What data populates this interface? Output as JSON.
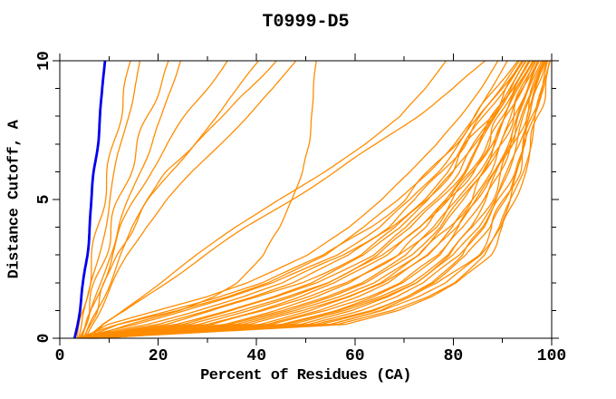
{
  "chart_data": {
    "type": "line",
    "title": "T0999-D5",
    "xlabel": "Percent of Residues (CA)",
    "ylabel": "Distance Cutoff, A",
    "xlim": [
      0,
      100
    ],
    "ylim": [
      0,
      10
    ],
    "grid": "off",
    "legend": "none",
    "x_major_ticks": [
      0,
      20,
      40,
      60,
      80,
      100
    ],
    "x_minor_ticks": [
      10,
      30,
      50,
      70,
      90
    ],
    "y_major_ticks": [
      0,
      5,
      10
    ],
    "y_minor_ticks": [
      1,
      2,
      3,
      4,
      6,
      7,
      8,
      9
    ],
    "x_tick_labels": [
      "0",
      "20",
      "40",
      "60",
      "80",
      "100"
    ],
    "y_tick_labels": [
      "0",
      "5",
      "10"
    ],
    "colors": {
      "highlight_curve": "#0000ee",
      "model_curves": "#ff8c00",
      "axis": "#000000",
      "background": "#ffffff"
    },
    "y_grid": [
      0,
      0.5,
      1,
      1.5,
      2,
      3,
      4,
      5,
      6,
      7,
      8,
      9,
      10
    ],
    "series": [
      {
        "name": "highlighted-model-blue",
        "color": "highlight_curve",
        "width": 2.8,
        "x_at_y": [
          3.0,
          3.6,
          4.1,
          4.5,
          4.9,
          5.5,
          6.0,
          6.5,
          7.0,
          7.6,
          8.2,
          8.7,
          9.2
        ]
      },
      {
        "name": "model-steep-1",
        "color": "model_curves",
        "width": 1.3,
        "x_at_y": [
          3.5,
          4.2,
          4.8,
          5.3,
          5.8,
          6.8,
          7.8,
          8.8,
          9.9,
          11.0,
          12.1,
          13.2,
          14.4
        ]
      },
      {
        "name": "model-steep-2",
        "color": "model_curves",
        "width": 1.3,
        "x_at_y": [
          3.8,
          4.6,
          5.3,
          6.0,
          6.6,
          7.8,
          9.0,
          10.2,
          11.4,
          12.6,
          13.8,
          15.0,
          16.3
        ]
      },
      {
        "name": "model-steep-3",
        "color": "model_curves",
        "width": 1.3,
        "x_at_y": [
          4.0,
          5.0,
          5.9,
          6.7,
          7.5,
          9.0,
          10.5,
          12.2,
          14.0,
          16.0,
          18.0,
          20.0,
          22.2
        ]
      },
      {
        "name": "model-steep-4",
        "color": "model_curves",
        "width": 1.3,
        "x_at_y": [
          4.2,
          5.4,
          6.5,
          7.5,
          8.4,
          10.2,
          12.0,
          14.0,
          16.3,
          18.6,
          20.8,
          22.7,
          24.5
        ]
      },
      {
        "name": "model-mid-1",
        "color": "model_curves",
        "width": 1.3,
        "x_at_y": [
          4.5,
          5.6,
          6.6,
          7.6,
          8.6,
          10.5,
          12.7,
          15.2,
          18.2,
          21.8,
          25.8,
          30.0,
          34.0
        ]
      },
      {
        "name": "model-mid-2",
        "color": "model_curves",
        "width": 1.3,
        "x_at_y": [
          5.0,
          6.2,
          7.4,
          8.6,
          9.8,
          12.2,
          15.0,
          18.4,
          22.4,
          27.0,
          31.8,
          36.3,
          40.5
        ]
      },
      {
        "name": "model-mid-3",
        "color": "model_curves",
        "width": 1.3,
        "x_at_y": [
          4.8,
          6.0,
          7.2,
          8.3,
          9.4,
          11.8,
          14.6,
          18.0,
          22.0,
          27.0,
          33.0,
          39.0,
          44.0
        ]
      },
      {
        "name": "model-mid-4",
        "color": "model_curves",
        "width": 1.3,
        "x_at_y": [
          5.2,
          6.6,
          8.0,
          9.4,
          10.8,
          13.8,
          17.4,
          21.8,
          27.0,
          32.6,
          38.2,
          43.4,
          48.0
        ]
      },
      {
        "name": "model-knee-52",
        "color": "model_curves",
        "width": 1.3,
        "x_at_y": [
          5.5,
          14.0,
          24.0,
          31.0,
          36.0,
          41.5,
          45.0,
          47.5,
          49.2,
          50.3,
          51.0,
          51.6,
          52.2
        ]
      },
      {
        "name": "model-diagonal-1",
        "color": "model_curves",
        "width": 1.3,
        "x_at_y": [
          5.5,
          8.5,
          12.5,
          16.5,
          20.5,
          28.0,
          36.0,
          44.5,
          53.5,
          62.0,
          69.5,
          74.5,
          78.5
        ]
      },
      {
        "name": "model-diagonal-2",
        "color": "model_curves",
        "width": 1.3,
        "x_at_y": [
          6.0,
          9.0,
          13.5,
          17.5,
          21.5,
          29.5,
          38.0,
          47.0,
          56.0,
          64.5,
          72.5,
          80.0,
          86.5
        ]
      },
      {
        "name": "model-near-bundle-1",
        "color": "model_curves",
        "width": 1.3,
        "x_at_y": [
          4.5,
          10.0,
          20.0,
          30.0,
          38.0,
          50.0,
          58.5,
          65.5,
          71.5,
          77.0,
          81.5,
          85.5,
          89.0
        ]
      },
      {
        "name": "model-near-bundle-2",
        "color": "model_curves",
        "width": 1.3,
        "x_at_y": [
          5.0,
          12.0,
          24.0,
          34.0,
          42.0,
          54.0,
          62.0,
          69.0,
          75.0,
          80.0,
          84.5,
          88.0,
          91.0
        ]
      }
    ],
    "bundle": {
      "name": "model-bundle",
      "color": "model_curves",
      "width": 1.3,
      "count": 30,
      "spread_exponent": 0.8,
      "x_at_y_left_envelope": [
        3.5,
        12.0,
        22.0,
        32.0,
        41.0,
        54.0,
        63.0,
        70.0,
        75.5,
        80.0,
        84.5,
        88.8,
        93.0
      ],
      "x_at_y_right_envelope": [
        7.5,
        58.0,
        69.0,
        76.0,
        81.0,
        87.0,
        90.5,
        92.5,
        94.5,
        96.0,
        97.2,
        98.5,
        99.8
      ]
    }
  }
}
